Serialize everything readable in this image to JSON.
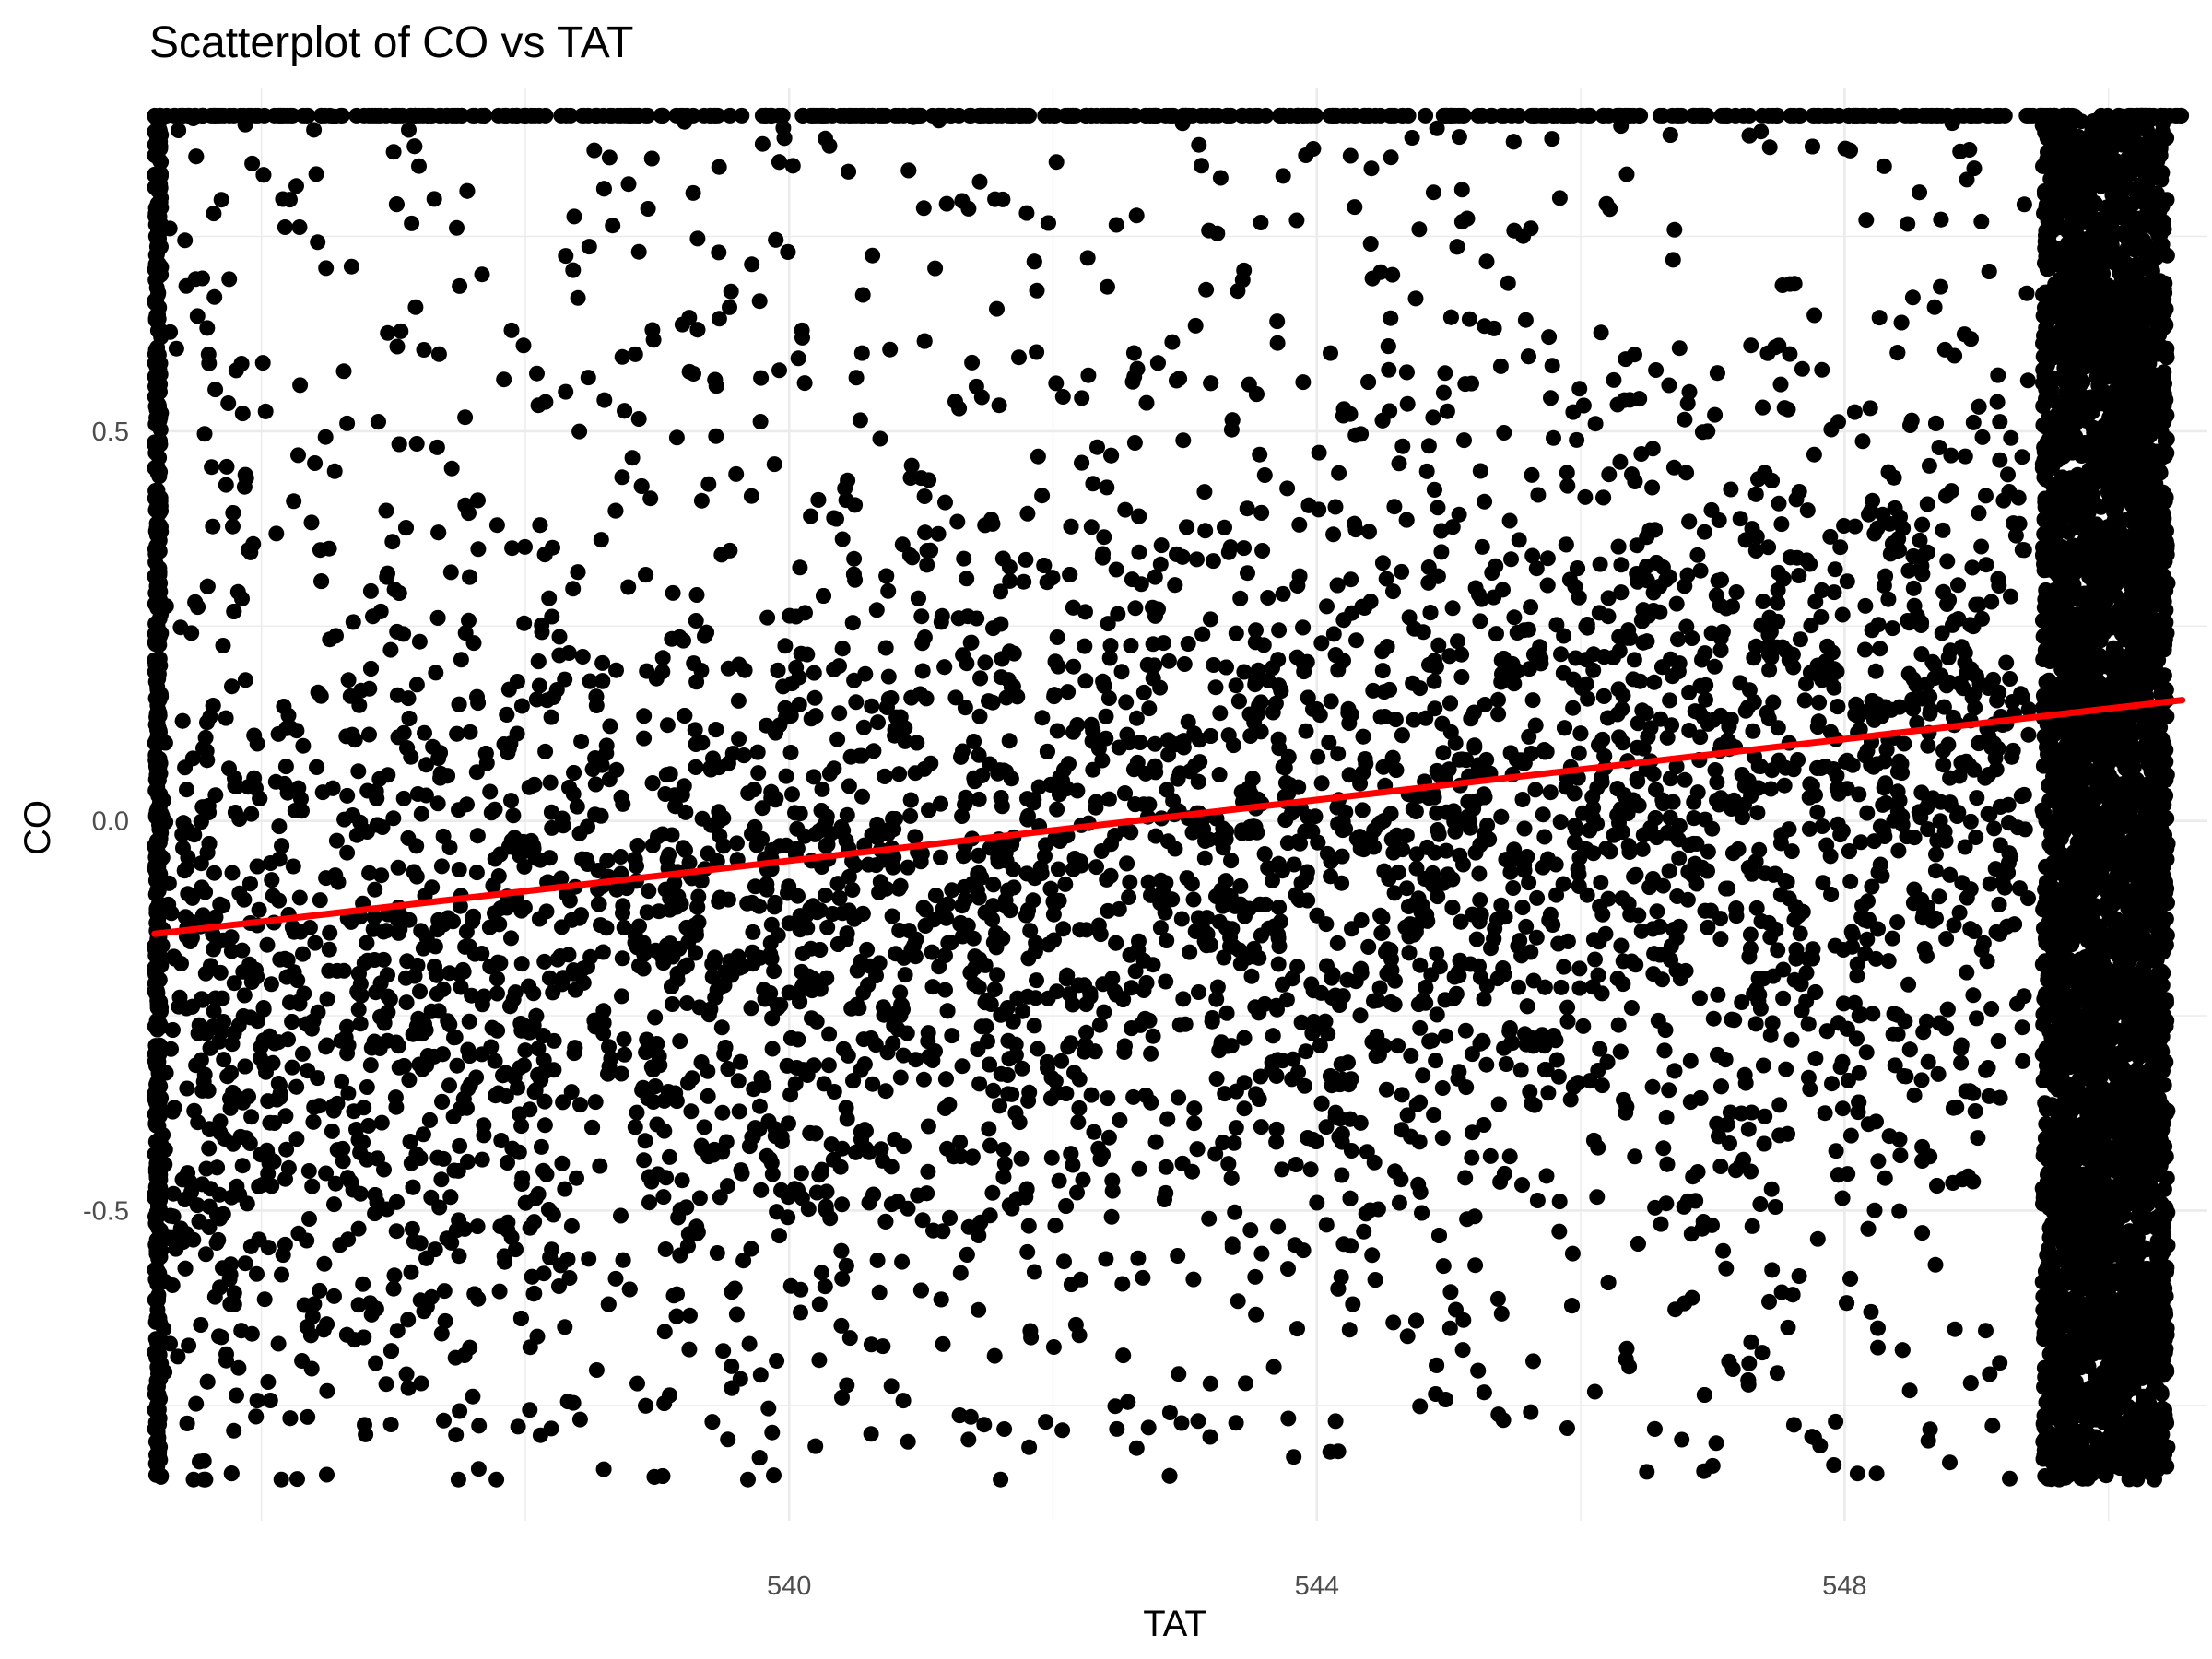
{
  "chart_data": {
    "type": "scatter",
    "title": "Scatterplot of CO vs TAT",
    "xlabel": "TAT",
    "ylabel": "CO",
    "xlim": [
      535.15,
      550.75
    ],
    "ylim": [
      -0.898,
      0.941
    ],
    "x_ticks": [
      540,
      544,
      548
    ],
    "x_tick_labels": [
      "540",
      "544",
      "548"
    ],
    "y_ticks": [
      -0.5,
      0.0,
      0.5
    ],
    "y_tick_labels": [
      "-0.5",
      "0.0",
      "0.5"
    ],
    "grid": true,
    "legend": "none",
    "point_color": "#000000",
    "trend_color": "#ff0000",
    "trend_line": {
      "x": [
        535.19,
        550.56
      ],
      "y": [
        -0.145,
        0.155
      ]
    },
    "series": [
      {
        "values_note_free": true,
        "points": [
          [
            537.2,
            0.23
          ],
          [
            537.9,
            0.35
          ],
          [
            538.6,
            0.54
          ],
          [
            539.3,
            0.29
          ],
          [
            540.1,
            0.62
          ],
          [
            541.0,
            0.44
          ],
          [
            541.8,
            0.78
          ],
          [
            542.6,
            0.31
          ],
          [
            543.4,
            0.68
          ],
          [
            544.2,
            0.52
          ],
          [
            545.1,
            0.81
          ],
          [
            545.9,
            0.43
          ],
          [
            546.7,
            0.72
          ],
          [
            547.5,
            0.61
          ],
          [
            548.3,
            0.84
          ],
          [
            536.4,
            -0.62
          ],
          [
            537.1,
            -0.71
          ],
          [
            538.2,
            -0.55
          ],
          [
            539.5,
            -0.68
          ],
          [
            540.4,
            -0.74
          ],
          [
            541.3,
            -0.58
          ],
          [
            542.2,
            -0.66
          ],
          [
            543.1,
            -0.77
          ],
          [
            544.0,
            -0.49
          ],
          [
            545.2,
            -0.57
          ],
          [
            546.1,
            -0.41
          ],
          [
            547.3,
            -0.52
          ],
          [
            548.2,
            -0.63
          ],
          [
            549.1,
            -0.71
          ]
        ]
      }
    ]
  }
}
